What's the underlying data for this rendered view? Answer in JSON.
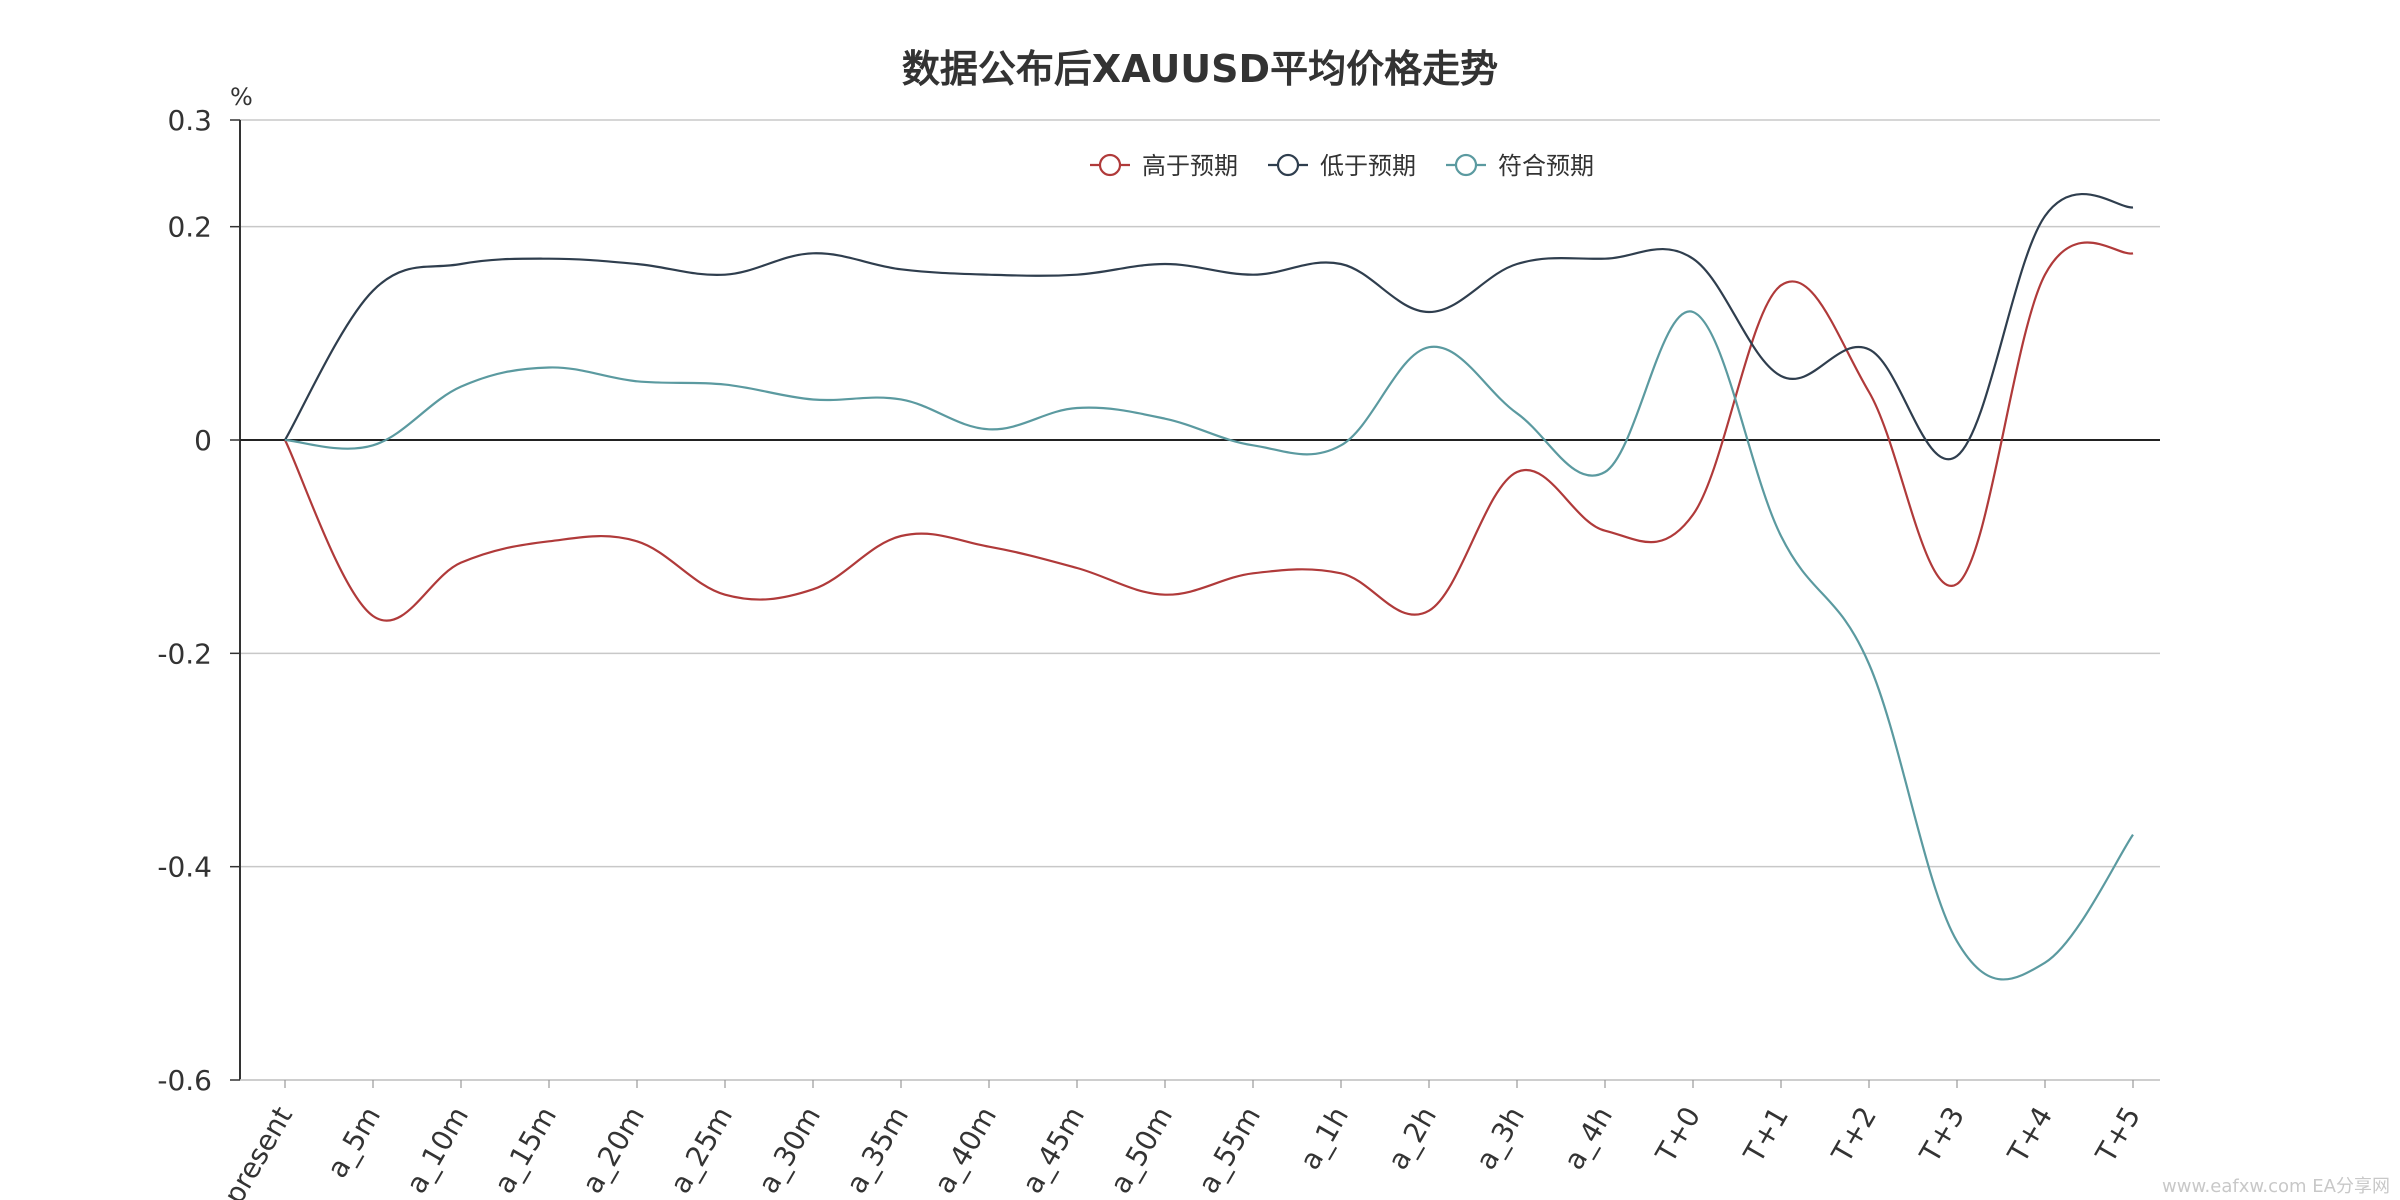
{
  "chart_data": {
    "type": "line",
    "title": "数据公布后XAUUSD平均价格走势",
    "y_unit": "%",
    "ylim": [
      -0.6,
      0.3
    ],
    "yticks": [
      0.3,
      0.2,
      0,
      -0.2,
      -0.4,
      -0.6
    ],
    "ytick_labels": [
      "0.3",
      "0.2",
      "0",
      "-0.2",
      "-0.4",
      "-0.6"
    ],
    "grid": true,
    "legend_position": "top-center",
    "categories": [
      "present",
      "a_5m",
      "a_10m",
      "a_15m",
      "a_20m",
      "a_25m",
      "a_30m",
      "a_35m",
      "a_40m",
      "a_45m",
      "a_50m",
      "a_55m",
      "a_1h",
      "a_2h",
      "a_3h",
      "a_4h",
      "T+0",
      "T+1",
      "T+2",
      "T+3",
      "T+4",
      "T+5"
    ],
    "series": [
      {
        "name": "高于预期",
        "color": "#b03a3a",
        "values": [
          0,
          -0.165,
          -0.115,
          -0.095,
          -0.095,
          -0.145,
          -0.14,
          -0.09,
          -0.1,
          -0.12,
          -0.145,
          -0.125,
          -0.125,
          -0.16,
          -0.03,
          -0.085,
          -0.07,
          0.145,
          0.045,
          -0.135,
          0.155,
          0.175
        ]
      },
      {
        "name": "低于预期",
        "color": "#2f3e4e",
        "values": [
          0,
          0.14,
          0.165,
          0.17,
          0.165,
          0.155,
          0.175,
          0.16,
          0.155,
          0.155,
          0.165,
          0.155,
          0.165,
          0.12,
          0.165,
          0.17,
          0.17,
          0.06,
          0.085,
          -0.015,
          0.21,
          0.218
        ]
      },
      {
        "name": "符合预期",
        "color": "#5b9aa0",
        "values": [
          0,
          -0.005,
          0.05,
          0.068,
          0.055,
          0.052,
          0.038,
          0.038,
          0.01,
          0.03,
          0.02,
          -0.005,
          -0.005,
          0.087,
          0.025,
          -0.03,
          0.12,
          -0.09,
          -0.21,
          -0.47,
          -0.49,
          -0.37
        ]
      }
    ]
  },
  "watermark": "www.eafxw.com  EA分享网"
}
